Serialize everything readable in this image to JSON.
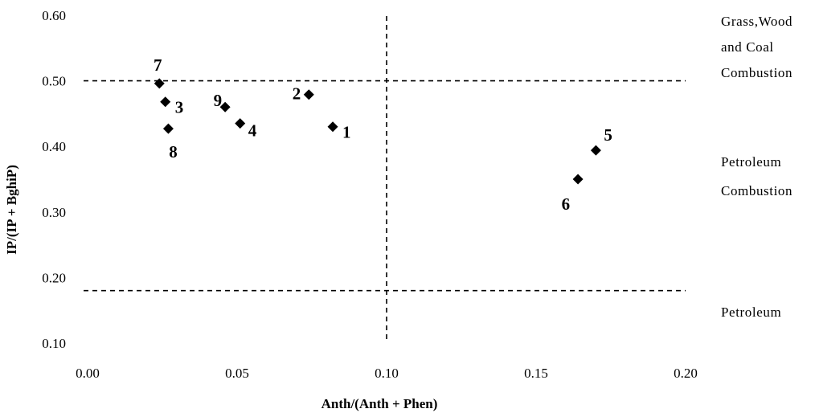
{
  "chart_data": {
    "type": "scatter",
    "xlabel": "Anth/(Anth + Phen)",
    "ylabel": "IP/(IP + BghiP)",
    "xlim": [
      0.0,
      0.2
    ],
    "ylim": [
      0.1,
      0.6
    ],
    "x_ticks": [
      "0.00",
      "0.05",
      "0.10",
      "0.15",
      "0.20"
    ],
    "y_ticks": [
      "0.10",
      "0.20",
      "0.30",
      "0.40",
      "0.50",
      "0.60"
    ],
    "grid": false,
    "marker": "diamond",
    "color": "#000000",
    "points": [
      {
        "label": "1",
        "x": 0.082,
        "y": 0.43
      },
      {
        "label": "2",
        "x": 0.074,
        "y": 0.479
      },
      {
        "label": "3",
        "x": 0.026,
        "y": 0.468
      },
      {
        "label": "4",
        "x": 0.051,
        "y": 0.435
      },
      {
        "label": "5",
        "x": 0.17,
        "y": 0.394
      },
      {
        "label": "6",
        "x": 0.164,
        "y": 0.35
      },
      {
        "label": "7",
        "x": 0.024,
        "y": 0.496
      },
      {
        "label": "8",
        "x": 0.027,
        "y": 0.427
      },
      {
        "label": "9",
        "x": 0.046,
        "y": 0.46
      }
    ],
    "reference_lines": [
      {
        "orientation": "horizontal",
        "value": 0.5,
        "style": "dashed"
      },
      {
        "orientation": "horizontal",
        "value": 0.18,
        "style": "dashed"
      },
      {
        "orientation": "vertical",
        "value": 0.1,
        "style": "dashed"
      }
    ],
    "regions": [
      {
        "lines": [
          "Grass,Wood",
          "and Coal",
          "Combustion"
        ]
      },
      {
        "lines": [
          "Petroleum",
          "Combustion"
        ]
      },
      {
        "lines": [
          "Petroleum"
        ]
      }
    ]
  }
}
